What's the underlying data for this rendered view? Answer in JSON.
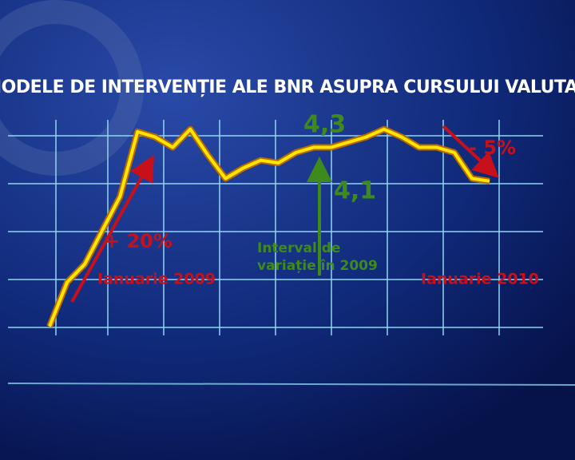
{
  "chart_data": {
    "type": "line",
    "title": "MODELE DE INTERVENȚIE ALE BNR ASUPRA CURSULUI VALUTAR",
    "categories": [
      null,
      null,
      null,
      null,
      null,
      null,
      null,
      null,
      null,
      null,
      null,
      null,
      null,
      null,
      null,
      null,
      null,
      null,
      null,
      null,
      null,
      null,
      null,
      null,
      null,
      null
    ],
    "series": [
      {
        "color": "#ffe600",
        "values": [
          3.55,
          3.72,
          3.79,
          3.92,
          4.05,
          4.3,
          4.28,
          4.24,
          4.31,
          4.21,
          4.12,
          4.16,
          4.19,
          4.18,
          4.22,
          4.24,
          4.24,
          4.26,
          4.28,
          4.31,
          4.28,
          4.24,
          4.24,
          4.22,
          4.12,
          4.11
        ]
      }
    ],
    "ylim": [
      3.5,
      4.4
    ],
    "annotations": {
      "high": "4,3",
      "low": "4,1",
      "rise": "+ 20%",
      "fall": "- 5%",
      "start": "Ianuarie 2009",
      "end": "Ianuarie 2010",
      "range_line1": "Interval de",
      "range_line2": "variație  în 2009"
    }
  }
}
